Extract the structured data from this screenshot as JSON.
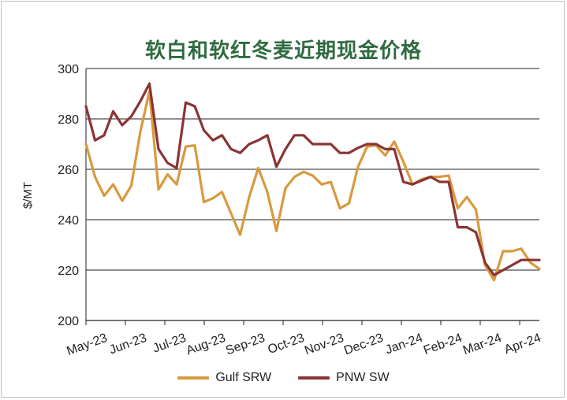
{
  "chart_data": {
    "type": "line",
    "title": "软白和软红冬麦近期现金价格",
    "ylabel": "$/MT",
    "xlabel": "",
    "ylim": [
      200,
      300
    ],
    "yticks": [
      200,
      220,
      240,
      260,
      280,
      300
    ],
    "grid": true,
    "legend_position": "bottom",
    "x_tick_labels": [
      "May-23",
      "Jun-23",
      "Jul-23",
      "Aug-23",
      "Sep-23",
      "Oct-23",
      "Nov-23",
      "Dec-23",
      "Jan-24",
      "Feb-24",
      "Mar-24",
      "Apr-24"
    ],
    "series": [
      {
        "name": "Gulf SRW",
        "color": "#d89a3e",
        "values": [
          270,
          257,
          249.5,
          254,
          247.5,
          253.5,
          275,
          291,
          252,
          258,
          254,
          269,
          269.5,
          247,
          248.5,
          251,
          242.5,
          234,
          249,
          260.5,
          251,
          235.5,
          252.5,
          257,
          259,
          257.5,
          254,
          255,
          244.5,
          246.5,
          261,
          269,
          269.5,
          265.5,
          271,
          263,
          254,
          256,
          257,
          257,
          257.5,
          244.5,
          249,
          244,
          222,
          216,
          227.5,
          227.5,
          228.5,
          223,
          220.5
        ]
      },
      {
        "name": "PNW SW",
        "color": "#8b3434",
        "values": [
          285,
          271.5,
          273.5,
          283,
          277.5,
          281,
          287,
          294,
          268,
          262.5,
          260.5,
          286.5,
          285,
          275.5,
          271.5,
          273.5,
          268,
          266.5,
          270,
          271.5,
          273.5,
          261,
          268,
          273.5,
          273.5,
          270,
          270,
          270,
          266.5,
          266.5,
          268.5,
          270,
          270,
          268,
          268,
          255,
          254,
          255.5,
          257,
          255,
          255,
          237,
          237,
          235,
          223,
          218,
          220,
          222,
          224,
          224,
          224
        ]
      }
    ]
  }
}
